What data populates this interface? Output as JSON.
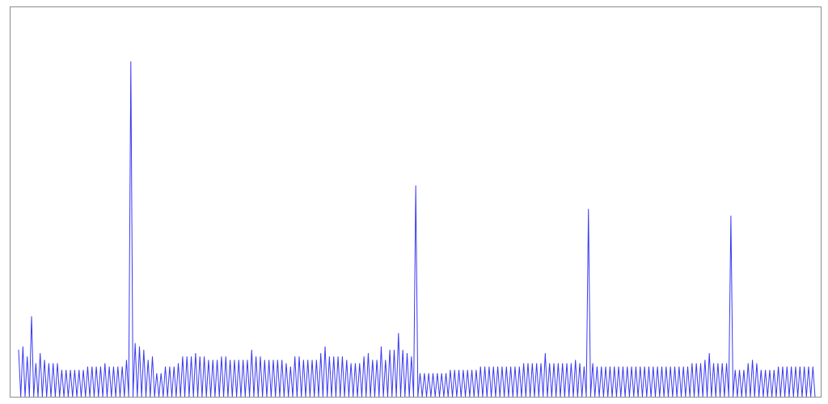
{
  "chart_data": {
    "type": "line",
    "title": "",
    "xlabel": "",
    "ylabel": "",
    "grid": false,
    "legend": "none",
    "ylim": [
      0,
      100
    ],
    "series": [
      {
        "color": "#3a3af0",
        "values": [
          14,
          0,
          15,
          0,
          12,
          0,
          24,
          0,
          10,
          0,
          13,
          0,
          11,
          0,
          10,
          0,
          10,
          0,
          10,
          0,
          8,
          0,
          8,
          0,
          8,
          0,
          8,
          0,
          8,
          0,
          8,
          0,
          9,
          0,
          9,
          0,
          9,
          0,
          9,
          0,
          10,
          0,
          9,
          0,
          9,
          0,
          9,
          0,
          9,
          0,
          11,
          0,
          100,
          0,
          16,
          0,
          15,
          0,
          14,
          0,
          11,
          0,
          12,
          0,
          7,
          0,
          7,
          0,
          9,
          0,
          9,
          0,
          9,
          0,
          10,
          0,
          12,
          0,
          12,
          0,
          12,
          0,
          13,
          0,
          12,
          0,
          12,
          0,
          11,
          0,
          11,
          0,
          11,
          0,
          12,
          0,
          12,
          0,
          11,
          0,
          11,
          0,
          11,
          0,
          11,
          0,
          11,
          0,
          14,
          0,
          12,
          0,
          12,
          0,
          11,
          0,
          11,
          0,
          11,
          0,
          11,
          0,
          11,
          0,
          10,
          0,
          9,
          0,
          12,
          0,
          12,
          0,
          11,
          0,
          11,
          0,
          11,
          0,
          11,
          0,
          13,
          0,
          15,
          0,
          12,
          0,
          12,
          0,
          12,
          0,
          12,
          0,
          11,
          0,
          10,
          0,
          10,
          0,
          10,
          0,
          12,
          0,
          13,
          0,
          11,
          0,
          11,
          0,
          15,
          0,
          11,
          0,
          14,
          0,
          14,
          0,
          19,
          0,
          14,
          0,
          13,
          0,
          12,
          0,
          63,
          0,
          7,
          0,
          7,
          0,
          7,
          0,
          7,
          0,
          7,
          0,
          7,
          0,
          7,
          0,
          8,
          0,
          8,
          0,
          8,
          0,
          8,
          0,
          8,
          0,
          8,
          0,
          8,
          0,
          9,
          0,
          9,
          0,
          9,
          0,
          9,
          0,
          9,
          0,
          9,
          0,
          9,
          0,
          9,
          0,
          9,
          0,
          9,
          0,
          10,
          0,
          10,
          0,
          10,
          0,
          10,
          0,
          10,
          0,
          13,
          0,
          10,
          0,
          10,
          0,
          10,
          0,
          10,
          0,
          10,
          0,
          10,
          0,
          11,
          0,
          10,
          0,
          9,
          0,
          56,
          0,
          10,
          0,
          9,
          0,
          9,
          0,
          9,
          0,
          9,
          0,
          9,
          0,
          9,
          0,
          9,
          0,
          9,
          0,
          9,
          0,
          9,
          0,
          9,
          0,
          9,
          0,
          9,
          0,
          9,
          0,
          9,
          0,
          9,
          0,
          9,
          0,
          9,
          0,
          9,
          0,
          9,
          0,
          9,
          0,
          9,
          0,
          10,
          0,
          10,
          0,
          10,
          0,
          11,
          0,
          13,
          0,
          10,
          0,
          10,
          0,
          10,
          0,
          10,
          0,
          54,
          0,
          8,
          0,
          8,
          0,
          8,
          0,
          10,
          0,
          11,
          0,
          10,
          0,
          8,
          0,
          8,
          0,
          8,
          0,
          8,
          0,
          9,
          0,
          9,
          0,
          9,
          0,
          9,
          0,
          9,
          0,
          9,
          0,
          9,
          0,
          9,
          0,
          9,
          0
        ]
      }
    ]
  }
}
